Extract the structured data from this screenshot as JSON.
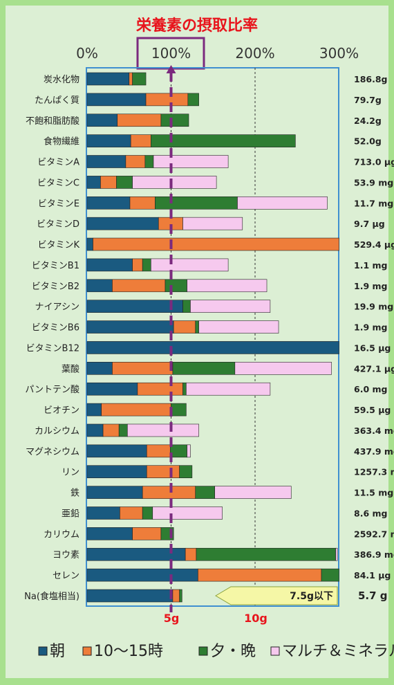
{
  "chart_data": {
    "type": "bar",
    "title": "栄養素の摂取比率",
    "x_tick_labels": [
      "0%",
      "100%",
      "200%",
      "300%"
    ],
    "xlim": [
      0,
      300
    ],
    "highlight_tick": "100%",
    "series": [
      {
        "name": "朝",
        "color": "#1a5a80"
      },
      {
        "name": "10～15時",
        "color": "#ee7d3a"
      },
      {
        "name": "夕・晩",
        "color": "#2e7d32"
      },
      {
        "name": "マルチ＆ミネラル",
        "color": "#f6c9ee"
      }
    ],
    "rows": [
      {
        "label": "炭水化物",
        "value": "186.8g",
        "segments": [
          50,
          4,
          16,
          0
        ]
      },
      {
        "label": "たんぱく質",
        "value": "79.7g",
        "segments": [
          70,
          50,
          13,
          0
        ]
      },
      {
        "label": "不飽和脂肪酸",
        "value": "24.2g",
        "segments": [
          36,
          52,
          33,
          0
        ]
      },
      {
        "label": "食物繊維",
        "value": "52.0g",
        "segments": [
          52,
          24,
          172,
          0
        ]
      },
      {
        "label": "ビタミンA",
        "value": "713.0 μg",
        "segments": [
          46,
          23,
          10,
          89
        ]
      },
      {
        "label": "ビタミンC",
        "value": "53.9 mg",
        "segments": [
          16,
          19,
          19,
          100
        ]
      },
      {
        "label": "ビタミンE",
        "value": "11.7 mg",
        "segments": [
          51,
          30,
          98,
          107
        ]
      },
      {
        "label": "ビタミンD",
        "value": "9.7 μg",
        "segments": [
          85,
          29,
          0,
          71
        ]
      },
      {
        "label": "ビタミンK",
        "value": "529.4 μg",
        "segments": [
          7,
          293,
          0,
          0
        ]
      },
      {
        "label": "ビタミンB1",
        "value": "1.1 mg",
        "segments": [
          54,
          12,
          10,
          92
        ]
      },
      {
        "label": "ビタミンB2",
        "value": "1.9 mg",
        "segments": [
          30,
          63,
          26,
          95
        ]
      },
      {
        "label": "ナイアシン",
        "value": "19.9 mg",
        "segments": [
          114,
          0,
          9,
          95
        ]
      },
      {
        "label": "ビタミンB6",
        "value": "1.9 mg",
        "segments": [
          103,
          26,
          4,
          95
        ]
      },
      {
        "label": "ビタミンB12",
        "value": "16.5 μg",
        "segments": [
          300,
          0,
          0,
          0
        ]
      },
      {
        "label": "葉酸",
        "value": "427.1 μg",
        "segments": [
          30,
          72,
          74,
          115
        ]
      },
      {
        "label": "パントテン酸",
        "value": "6.0 mg",
        "segments": [
          60,
          54,
          4,
          100
        ]
      },
      {
        "label": "ビオチン",
        "value": "59.5 μg",
        "segments": [
          17,
          83,
          18,
          0
        ]
      },
      {
        "label": "カルシウム",
        "value": "363.4 mg",
        "segments": [
          19,
          19,
          10,
          85
        ]
      },
      {
        "label": "マグネシウム",
        "value": "437.9 mg",
        "segments": [
          71,
          28,
          20,
          4
        ]
      },
      {
        "label": "リン",
        "value": "1257.3 mg",
        "segments": [
          71,
          39,
          15,
          0
        ]
      },
      {
        "label": "鉄",
        "value": "11.5 mg",
        "segments": [
          66,
          63,
          23,
          91
        ]
      },
      {
        "label": "亜鉛",
        "value": "8.6 mg",
        "segments": [
          39,
          27,
          12,
          83
        ]
      },
      {
        "label": "カリウム",
        "value": "2592.7 mg",
        "segments": [
          54,
          34,
          15,
          0
        ]
      },
      {
        "label": "ヨウ素",
        "value": "386.9 mg",
        "segments": [
          117,
          13,
          166,
          2
        ]
      },
      {
        "label": "セレン",
        "value": "84.1 μg",
        "segments": [
          132,
          147,
          21,
          0
        ]
      },
      {
        "label": "Na(食塩相当)",
        "value": "5.7 g",
        "segments": [
          102,
          8,
          3,
          0
        ]
      }
    ],
    "salt_axis_labels": [
      "5g",
      "10g"
    ],
    "salt_target_label": "7.5g以下"
  },
  "legend": {
    "items": [
      "朝",
      "10～15時",
      "夕・晩",
      "マルチ＆ミネラル"
    ]
  }
}
